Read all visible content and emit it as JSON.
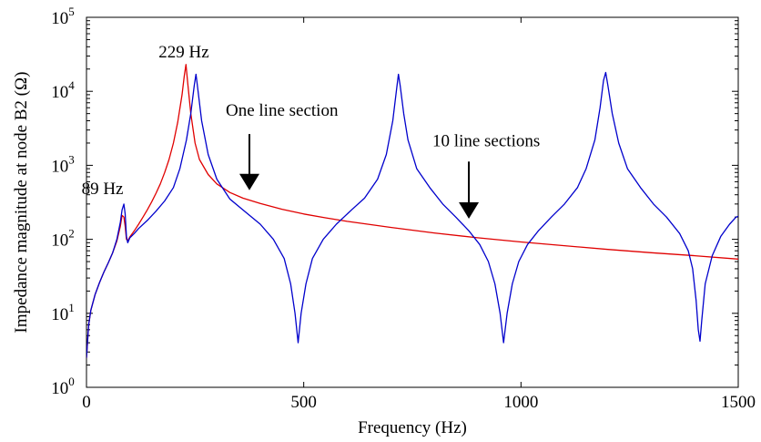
{
  "chart_data": {
    "type": "line",
    "xlabel": "Frequency (Hz)",
    "ylabel": "Impedance magnitude at node B2 (Ω)",
    "xlim": [
      0,
      1500
    ],
    "ylim": [
      1,
      100000
    ],
    "yscale": "log",
    "grid": false,
    "x_ticks": [
      {
        "value": 0,
        "label": "0"
      },
      {
        "value": 500,
        "label": "500"
      },
      {
        "value": 1000,
        "label": "1000"
      },
      {
        "value": 1500,
        "label": "1500"
      }
    ],
    "y_ticks": [
      {
        "value": 1,
        "base": "10",
        "exp": "0"
      },
      {
        "value": 10,
        "base": "10",
        "exp": "1"
      },
      {
        "value": 100,
        "base": "10",
        "exp": "2"
      },
      {
        "value": 1000,
        "base": "10",
        "exp": "3"
      },
      {
        "value": 10000,
        "base": "10",
        "exp": "4"
      },
      {
        "value": 100000,
        "base": "10",
        "exp": "5"
      }
    ],
    "series": [
      {
        "color": "#e00000",
        "points": [
          [
            0,
            2.5
          ],
          [
            5,
            7
          ],
          [
            10,
            11
          ],
          [
            20,
            18
          ],
          [
            30,
            26
          ],
          [
            40,
            36
          ],
          [
            50,
            48
          ],
          [
            60,
            65
          ],
          [
            70,
            95
          ],
          [
            78,
            150
          ],
          [
            82,
            210
          ],
          [
            86,
            200
          ],
          [
            89,
            150
          ],
          [
            92,
            100
          ],
          [
            95,
            95
          ],
          [
            100,
            108
          ],
          [
            110,
            130
          ],
          [
            120,
            160
          ],
          [
            130,
            200
          ],
          [
            140,
            250
          ],
          [
            150,
            320
          ],
          [
            160,
            420
          ],
          [
            170,
            560
          ],
          [
            180,
            800
          ],
          [
            190,
            1200
          ],
          [
            200,
            2000
          ],
          [
            210,
            3800
          ],
          [
            220,
            9000
          ],
          [
            225,
            16000
          ],
          [
            229,
            23000
          ],
          [
            233,
            13000
          ],
          [
            240,
            5000
          ],
          [
            250,
            2000
          ],
          [
            260,
            1200
          ],
          [
            280,
            750
          ],
          [
            300,
            560
          ],
          [
            330,
            430
          ],
          [
            360,
            360
          ],
          [
            400,
            305
          ],
          [
            450,
            255
          ],
          [
            500,
            220
          ],
          [
            550,
            195
          ],
          [
            600,
            175
          ],
          [
            700,
            145
          ],
          [
            800,
            122
          ],
          [
            900,
            105
          ],
          [
            1000,
            92
          ],
          [
            1100,
            82
          ],
          [
            1200,
            73
          ],
          [
            1300,
            66
          ],
          [
            1400,
            60
          ],
          [
            1500,
            54
          ]
        ]
      },
      {
        "color": "#0000cc",
        "points": [
          [
            0,
            2.5
          ],
          [
            5,
            7
          ],
          [
            10,
            11
          ],
          [
            20,
            18
          ],
          [
            30,
            26
          ],
          [
            40,
            36
          ],
          [
            50,
            48
          ],
          [
            60,
            65
          ],
          [
            70,
            100
          ],
          [
            78,
            170
          ],
          [
            82,
            250
          ],
          [
            86,
            300
          ],
          [
            89,
            220
          ],
          [
            92,
            110
          ],
          [
            95,
            90
          ],
          [
            100,
            105
          ],
          [
            110,
            120
          ],
          [
            120,
            140
          ],
          [
            140,
            180
          ],
          [
            160,
            240
          ],
          [
            180,
            330
          ],
          [
            200,
            500
          ],
          [
            215,
            900
          ],
          [
            230,
            2200
          ],
          [
            240,
            5000
          ],
          [
            248,
            12000
          ],
          [
            252,
            17000
          ],
          [
            256,
            11000
          ],
          [
            265,
            4000
          ],
          [
            280,
            1400
          ],
          [
            300,
            650
          ],
          [
            330,
            350
          ],
          [
            360,
            250
          ],
          [
            400,
            160
          ],
          [
            430,
            100
          ],
          [
            455,
            55
          ],
          [
            470,
            25
          ],
          [
            480,
            10
          ],
          [
            487,
            4
          ],
          [
            494,
            10
          ],
          [
            505,
            25
          ],
          [
            520,
            55
          ],
          [
            545,
            100
          ],
          [
            575,
            160
          ],
          [
            610,
            250
          ],
          [
            640,
            360
          ],
          [
            670,
            650
          ],
          [
            690,
            1400
          ],
          [
            705,
            4000
          ],
          [
            714,
            11000
          ],
          [
            718,
            17000
          ],
          [
            722,
            12000
          ],
          [
            730,
            5000
          ],
          [
            740,
            2200
          ],
          [
            760,
            900
          ],
          [
            790,
            500
          ],
          [
            820,
            300
          ],
          [
            850,
            200
          ],
          [
            880,
            130
          ],
          [
            905,
            85
          ],
          [
            925,
            50
          ],
          [
            940,
            25
          ],
          [
            952,
            10
          ],
          [
            960,
            4
          ],
          [
            968,
            10
          ],
          [
            980,
            25
          ],
          [
            995,
            50
          ],
          [
            1015,
            85
          ],
          [
            1040,
            130
          ],
          [
            1070,
            200
          ],
          [
            1100,
            300
          ],
          [
            1130,
            500
          ],
          [
            1150,
            900
          ],
          [
            1170,
            2200
          ],
          [
            1182,
            6000
          ],
          [
            1190,
            14000
          ],
          [
            1195,
            18000
          ],
          [
            1200,
            12000
          ],
          [
            1210,
            5000
          ],
          [
            1225,
            2000
          ],
          [
            1245,
            900
          ],
          [
            1275,
            500
          ],
          [
            1305,
            300
          ],
          [
            1335,
            200
          ],
          [
            1365,
            120
          ],
          [
            1385,
            70
          ],
          [
            1395,
            40
          ],
          [
            1403,
            15
          ],
          [
            1408,
            6
          ],
          [
            1412,
            4.2
          ],
          [
            1416,
            8
          ],
          [
            1424,
            25
          ],
          [
            1440,
            60
          ],
          [
            1460,
            110
          ],
          [
            1480,
            160
          ],
          [
            1495,
            200
          ],
          [
            1500,
            205
          ]
        ]
      }
    ],
    "annotations": {
      "peak_89": {
        "text": "89 Hz",
        "x": 85,
        "y": 290
      },
      "peak_229": {
        "text": "229 Hz",
        "x": 229,
        "y": 23000
      },
      "one_line": {
        "text": "One line section",
        "x": 375,
        "y": 560,
        "arrow_y_top": 1500,
        "arrow_y_bottom": 460
      },
      "ten_lines": {
        "text": "10 line sections",
        "x": 880,
        "y": 250,
        "arrow_y_top": 800,
        "arrow_y_bottom": 190
      }
    }
  }
}
